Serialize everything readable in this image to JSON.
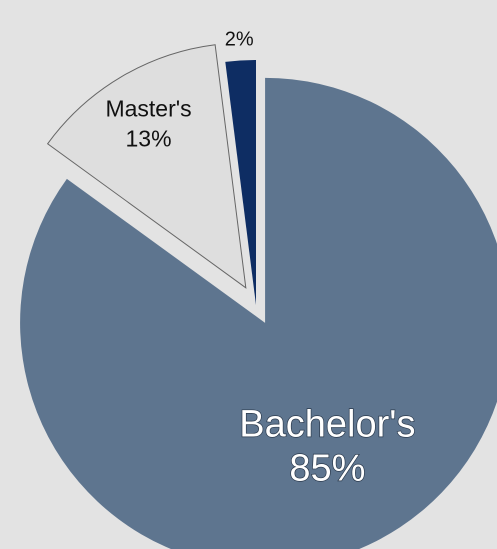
{
  "chart_data": {
    "type": "pie",
    "categories": [
      "Bachelor's",
      "Master's",
      ""
    ],
    "values": [
      85,
      13,
      2
    ],
    "labels": [
      "85%",
      "13%",
      "2%"
    ],
    "colors": [
      "#5e758f",
      "#dedede",
      "#0e2d63"
    ],
    "exploded": [
      true,
      true,
      false
    ],
    "legend": "none"
  }
}
